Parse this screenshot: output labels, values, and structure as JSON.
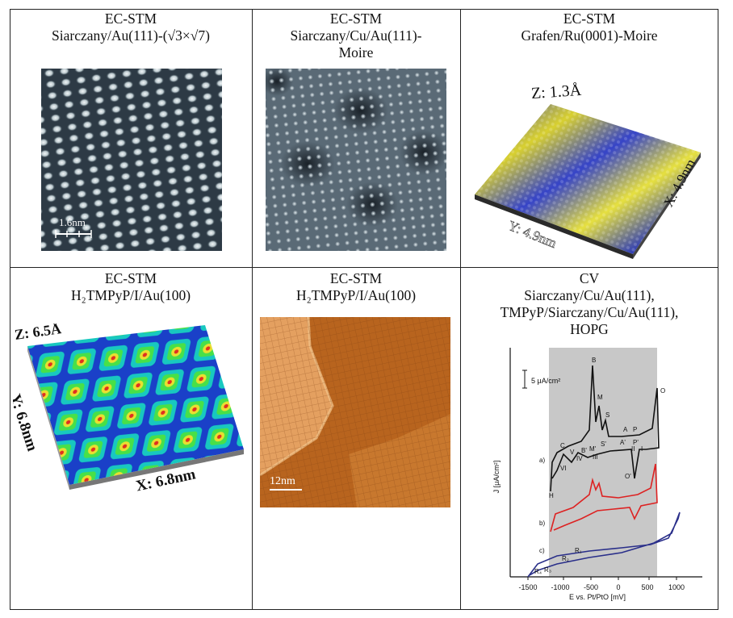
{
  "table": {
    "cells": [
      {
        "method": "EC-STM",
        "line2": "Siarczany/Au(111)-(√3×√7)",
        "line3": "",
        "scale": "1.6nm"
      },
      {
        "method": "EC-STM",
        "line2": "Siarczany/Cu/Au(111)-",
        "line3": "Moire"
      },
      {
        "method": "EC-STM",
        "line2": "Grafen/Ru(0001)-Moire",
        "z_label": "Z: 1.3Å",
        "x_label": "X: 4.9nm",
        "y_label": "Y: 4.9nm"
      },
      {
        "method": "EC-STM",
        "line2": "H₂TMPyP/I/Au(100)",
        "z_label": "Z: 6.5Å",
        "y_label": "Y: 6.8nm",
        "x_label": "X: 6.8nm"
      },
      {
        "method": "EC-STM",
        "line2": "H₂TMPyP/I/Au(100)",
        "scale": "12nm"
      },
      {
        "method": "CV",
        "line2": "Siarczany/Cu/Au(111),",
        "line3": "TMPyP/Siarczany/Cu/Au(111),",
        "line4": "HOPG"
      }
    ]
  },
  "cv_plot": {
    "ylabel": "J [μA/cm²]",
    "xlabel": "E vs. Pt/PtO [mV]",
    "xticks": [
      "-1500",
      "-1000",
      "-500",
      "0",
      "500",
      "1000"
    ],
    "scale_label": "5 μA/cm²",
    "curve_labels": [
      "a)",
      "b)",
      "c)"
    ],
    "peak_labels": [
      "B",
      "M",
      "S",
      "O",
      "A",
      "P",
      "A'",
      "P'",
      "II",
      "I",
      "C",
      "V",
      "B'",
      "M'",
      "S'",
      "III",
      "IV",
      "VI",
      "O'",
      "H",
      "R₁",
      "R₂",
      "R₃",
      "R₄"
    ],
    "colors": {
      "a": "#111111",
      "b": "#dd2222",
      "c": "#2a2f8a",
      "band": "#c8c8c8"
    }
  }
}
